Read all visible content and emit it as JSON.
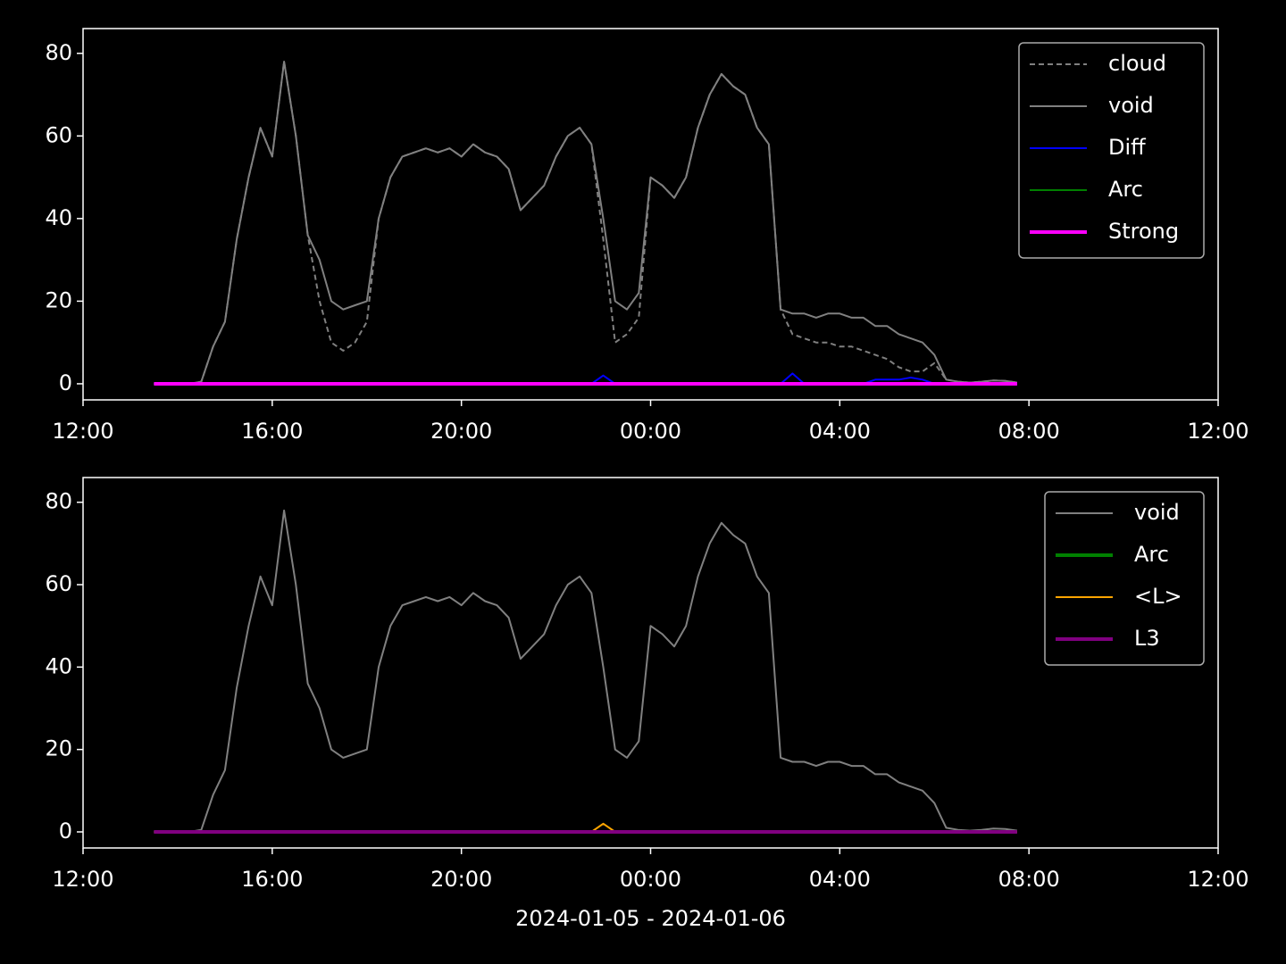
{
  "chart_data": [
    {
      "type": "line",
      "x": [
        "2024-01-05 13:30",
        "2024-01-05 13:45",
        "2024-01-05 14:00",
        "2024-01-05 14:15",
        "2024-01-05 14:30",
        "2024-01-05 14:45",
        "2024-01-05 15:00",
        "2024-01-05 15:15",
        "2024-01-05 15:30",
        "2024-01-05 15:45",
        "2024-01-05 16:00",
        "2024-01-05 16:15",
        "2024-01-05 16:30",
        "2024-01-05 16:45",
        "2024-01-05 17:00",
        "2024-01-05 17:15",
        "2024-01-05 17:30",
        "2024-01-05 17:45",
        "2024-01-05 18:00",
        "2024-01-05 18:15",
        "2024-01-05 18:30",
        "2024-01-05 18:45",
        "2024-01-05 19:00",
        "2024-01-05 19:15",
        "2024-01-05 19:30",
        "2024-01-05 19:45",
        "2024-01-05 20:00",
        "2024-01-05 20:15",
        "2024-01-05 20:30",
        "2024-01-05 20:45",
        "2024-01-05 21:00",
        "2024-01-05 21:15",
        "2024-01-05 21:30",
        "2024-01-05 21:45",
        "2024-01-05 22:00",
        "2024-01-05 22:15",
        "2024-01-05 22:30",
        "2024-01-05 22:45",
        "2024-01-05 23:00",
        "2024-01-05 23:15",
        "2024-01-05 23:30",
        "2024-01-05 23:45",
        "2024-01-06 00:00",
        "2024-01-06 00:15",
        "2024-01-06 00:30",
        "2024-01-06 00:45",
        "2024-01-06 01:00",
        "2024-01-06 01:15",
        "2024-01-06 01:30",
        "2024-01-06 01:45",
        "2024-01-06 02:00",
        "2024-01-06 02:15",
        "2024-01-06 02:30",
        "2024-01-06 02:45",
        "2024-01-06 03:00",
        "2024-01-06 03:15",
        "2024-01-06 03:30",
        "2024-01-06 03:45",
        "2024-01-06 04:00",
        "2024-01-06 04:15",
        "2024-01-06 04:30",
        "2024-01-06 04:45",
        "2024-01-06 05:00",
        "2024-01-06 05:15",
        "2024-01-06 05:30",
        "2024-01-06 05:45",
        "2024-01-06 06:00",
        "2024-01-06 06:15",
        "2024-01-06 06:30",
        "2024-01-06 06:45",
        "2024-01-06 07:00",
        "2024-01-06 07:15",
        "2024-01-06 07:30",
        "2024-01-06 07:45"
      ],
      "series": [
        {
          "name": "cloud",
          "color": "#808080",
          "dash": true,
          "width": 2,
          "values": [
            0,
            0,
            0,
            0,
            0.5,
            9,
            15,
            35,
            50,
            62,
            55,
            78,
            60,
            36,
            20,
            10,
            8,
            10,
            15,
            40,
            50,
            55,
            56,
            57,
            56,
            57,
            55,
            58,
            56,
            55,
            52,
            42,
            45,
            48,
            55,
            60,
            62,
            58,
            35,
            10,
            12,
            16,
            50,
            48,
            45,
            50,
            62,
            70,
            75,
            72,
            70,
            62,
            58,
            18,
            12,
            11,
            10,
            10,
            9,
            9,
            8,
            7,
            6,
            4,
            3,
            3,
            5,
            1,
            0.5,
            0.3,
            0.5,
            0.8,
            0.7,
            0.3
          ]
        },
        {
          "name": "void",
          "color": "#808080",
          "width": 2,
          "values": [
            0,
            0,
            0,
            0,
            0.5,
            9,
            15,
            35,
            50,
            62,
            55,
            78,
            60,
            36,
            30,
            20,
            18,
            19,
            20,
            40,
            50,
            55,
            56,
            57,
            56,
            57,
            55,
            58,
            56,
            55,
            52,
            42,
            45,
            48,
            55,
            60,
            62,
            58,
            40,
            20,
            18,
            22,
            50,
            48,
            45,
            50,
            62,
            70,
            75,
            72,
            70,
            62,
            58,
            18,
            17,
            17,
            16,
            17,
            17,
            16,
            16,
            14,
            14,
            12,
            11,
            10,
            7,
            1,
            0.5,
            0.3,
            0.5,
            0.8,
            0.7,
            0.3
          ]
        },
        {
          "name": "Diff",
          "color": "#0000ff",
          "width": 2,
          "values": [
            0,
            0,
            0,
            0,
            0,
            0,
            0,
            0,
            0,
            0,
            0,
            0,
            0,
            0,
            0,
            0,
            0,
            0,
            0,
            0,
            0,
            0,
            0,
            0,
            0,
            0,
            0,
            0,
            0,
            0,
            0,
            0,
            0,
            0,
            0,
            0,
            0,
            0,
            2,
            0,
            0,
            0,
            0,
            0,
            0,
            0,
            0,
            0,
            0,
            0,
            0,
            0,
            0,
            0,
            2.5,
            0,
            0,
            0,
            0,
            0,
            0,
            1,
            1,
            1,
            1.5,
            1,
            0,
            0,
            0,
            0,
            0,
            0,
            0,
            0
          ]
        },
        {
          "name": "Arc",
          "color": "#008000",
          "width": 2,
          "values": [
            0,
            0,
            0,
            0,
            0,
            0,
            0,
            0,
            0,
            0,
            0,
            0,
            0,
            0,
            0,
            0,
            0,
            0,
            0,
            0,
            0,
            0,
            0,
            0,
            0,
            0,
            0,
            0,
            0,
            0,
            0,
            0,
            0,
            0,
            0,
            0,
            0,
            0,
            0,
            0,
            0,
            0,
            0,
            0,
            0,
            0,
            0,
            0,
            0,
            0,
            0,
            0,
            0,
            0,
            0,
            0,
            0,
            0,
            0,
            0,
            0,
            0,
            0,
            0,
            0,
            0,
            0,
            0,
            0,
            0,
            0,
            0,
            0,
            0
          ]
        },
        {
          "name": "Strong",
          "color": "#ff00ff",
          "width": 4,
          "values": [
            0,
            0,
            0,
            0,
            0,
            0,
            0,
            0,
            0,
            0,
            0,
            0,
            0,
            0,
            0,
            0,
            0,
            0,
            0,
            0,
            0,
            0,
            0,
            0,
            0,
            0,
            0,
            0,
            0,
            0,
            0,
            0,
            0,
            0,
            0,
            0,
            0,
            0,
            0,
            0,
            0,
            0,
            0,
            0,
            0,
            0,
            0,
            0,
            0,
            0,
            0,
            0,
            0,
            0,
            0,
            0,
            0,
            0,
            0,
            0,
            0,
            0,
            0,
            0,
            0,
            0,
            0,
            0,
            0,
            0,
            0,
            0,
            0,
            0
          ]
        }
      ],
      "xlim": [
        "2024-01-05 12:00",
        "2024-01-06 12:00"
      ],
      "xticks": [
        {
          "value": "2024-01-05 12:00",
          "label": "12:00"
        },
        {
          "value": "2024-01-05 16:00",
          "label": "16:00"
        },
        {
          "value": "2024-01-05 20:00",
          "label": "20:00"
        },
        {
          "value": "2024-01-06 00:00",
          "label": "00:00"
        },
        {
          "value": "2024-01-06 04:00",
          "label": "04:00"
        },
        {
          "value": "2024-01-06 08:00",
          "label": "08:00"
        },
        {
          "value": "2024-01-06 12:00",
          "label": "12:00"
        }
      ],
      "ylim": [
        -3.9,
        86
      ],
      "yticks": [
        0,
        20,
        40,
        60,
        80
      ],
      "legend": "upper right"
    },
    {
      "type": "line",
      "x": [
        "2024-01-05 13:30",
        "2024-01-05 13:45",
        "2024-01-05 14:00",
        "2024-01-05 14:15",
        "2024-01-05 14:30",
        "2024-01-05 14:45",
        "2024-01-05 15:00",
        "2024-01-05 15:15",
        "2024-01-05 15:30",
        "2024-01-05 15:45",
        "2024-01-05 16:00",
        "2024-01-05 16:15",
        "2024-01-05 16:30",
        "2024-01-05 16:45",
        "2024-01-05 17:00",
        "2024-01-05 17:15",
        "2024-01-05 17:30",
        "2024-01-05 17:45",
        "2024-01-05 18:00",
        "2024-01-05 18:15",
        "2024-01-05 18:30",
        "2024-01-05 18:45",
        "2024-01-05 19:00",
        "2024-01-05 19:15",
        "2024-01-05 19:30",
        "2024-01-05 19:45",
        "2024-01-05 20:00",
        "2024-01-05 20:15",
        "2024-01-05 20:30",
        "2024-01-05 20:45",
        "2024-01-05 21:00",
        "2024-01-05 21:15",
        "2024-01-05 21:30",
        "2024-01-05 21:45",
        "2024-01-05 22:00",
        "2024-01-05 22:15",
        "2024-01-05 22:30",
        "2024-01-05 22:45",
        "2024-01-05 23:00",
        "2024-01-05 23:15",
        "2024-01-05 23:30",
        "2024-01-05 23:45",
        "2024-01-06 00:00",
        "2024-01-06 00:15",
        "2024-01-06 00:30",
        "2024-01-06 00:45",
        "2024-01-06 01:00",
        "2024-01-06 01:15",
        "2024-01-06 01:30",
        "2024-01-06 01:45",
        "2024-01-06 02:00",
        "2024-01-06 02:15",
        "2024-01-06 02:30",
        "2024-01-06 02:45",
        "2024-01-06 03:00",
        "2024-01-06 03:15",
        "2024-01-06 03:30",
        "2024-01-06 03:45",
        "2024-01-06 04:00",
        "2024-01-06 04:15",
        "2024-01-06 04:30",
        "2024-01-06 04:45",
        "2024-01-06 05:00",
        "2024-01-06 05:15",
        "2024-01-06 05:30",
        "2024-01-06 05:45",
        "2024-01-06 06:00",
        "2024-01-06 06:15",
        "2024-01-06 06:30",
        "2024-01-06 06:45",
        "2024-01-06 07:00",
        "2024-01-06 07:15",
        "2024-01-06 07:30",
        "2024-01-06 07:45"
      ],
      "series": [
        {
          "name": "void",
          "color": "#808080",
          "width": 2,
          "values": [
            0,
            0,
            0,
            0,
            0.5,
            9,
            15,
            35,
            50,
            62,
            55,
            78,
            60,
            36,
            30,
            20,
            18,
            19,
            20,
            40,
            50,
            55,
            56,
            57,
            56,
            57,
            55,
            58,
            56,
            55,
            52,
            42,
            45,
            48,
            55,
            60,
            62,
            58,
            40,
            20,
            18,
            22,
            50,
            48,
            45,
            50,
            62,
            70,
            75,
            72,
            70,
            62,
            58,
            18,
            17,
            17,
            16,
            17,
            17,
            16,
            16,
            14,
            14,
            12,
            11,
            10,
            7,
            1,
            0.5,
            0.3,
            0.5,
            0.8,
            0.7,
            0.3
          ]
        },
        {
          "name": "Arc",
          "color": "#008000",
          "width": 4,
          "values": [
            0,
            0,
            0,
            0,
            0,
            0,
            0,
            0,
            0,
            0,
            0,
            0,
            0,
            0,
            0,
            0,
            0,
            0,
            0,
            0,
            0,
            0,
            0,
            0,
            0,
            0,
            0,
            0,
            0,
            0,
            0,
            0,
            0,
            0,
            0,
            0,
            0,
            0,
            0,
            0,
            0,
            0,
            0,
            0,
            0,
            0,
            0,
            0,
            0,
            0,
            0,
            0,
            0,
            0,
            0,
            0,
            0,
            0,
            0,
            0,
            0,
            0,
            0,
            0,
            0,
            0,
            0,
            0,
            0,
            0,
            0,
            0,
            0,
            0
          ]
        },
        {
          "name": "<L>",
          "color": "#ffa500",
          "width": 2,
          "values": [
            0,
            0,
            0,
            0,
            0,
            0,
            0,
            0,
            0,
            0,
            0,
            0,
            0,
            0,
            0,
            0,
            0,
            0,
            0,
            0,
            0,
            0,
            0,
            0,
            0,
            0,
            0,
            0,
            0,
            0,
            0,
            0,
            0,
            0,
            0,
            0,
            0,
            0,
            2,
            0,
            0,
            0,
            0,
            0,
            0,
            0,
            0,
            0,
            0,
            0,
            0,
            0,
            0,
            0,
            0,
            0,
            0,
            0,
            0,
            0,
            0,
            0,
            0,
            0,
            0,
            0,
            0,
            0,
            0,
            0,
            0,
            0,
            0,
            0
          ]
        },
        {
          "name": "L3",
          "color": "#800080",
          "width": 4,
          "values": [
            0,
            0,
            0,
            0,
            0,
            0,
            0,
            0,
            0,
            0,
            0,
            0,
            0,
            0,
            0,
            0,
            0,
            0,
            0,
            0,
            0,
            0,
            0,
            0,
            0,
            0,
            0,
            0,
            0,
            0,
            0,
            0,
            0,
            0,
            0,
            0,
            0,
            0,
            0,
            0,
            0,
            0,
            0,
            0,
            0,
            0,
            0,
            0,
            0,
            0,
            0,
            0,
            0,
            0,
            0,
            0,
            0,
            0,
            0,
            0,
            0,
            0,
            0,
            0,
            0,
            0,
            0,
            0,
            0,
            0,
            0,
            0,
            0,
            0
          ]
        }
      ],
      "xlim": [
        "2024-01-05 12:00",
        "2024-01-06 12:00"
      ],
      "xticks": [
        {
          "value": "2024-01-05 12:00",
          "label": "12:00"
        },
        {
          "value": "2024-01-05 16:00",
          "label": "16:00"
        },
        {
          "value": "2024-01-05 20:00",
          "label": "20:00"
        },
        {
          "value": "2024-01-06 00:00",
          "label": "00:00"
        },
        {
          "value": "2024-01-06 04:00",
          "label": "04:00"
        },
        {
          "value": "2024-01-06 08:00",
          "label": "08:00"
        },
        {
          "value": "2024-01-06 12:00",
          "label": "12:00"
        }
      ],
      "ylim": [
        -3.9,
        86
      ],
      "yticks": [
        0,
        20,
        40,
        60,
        80
      ],
      "legend": "upper right",
      "x_label": "2024-01-05 - 2024-01-06"
    }
  ]
}
